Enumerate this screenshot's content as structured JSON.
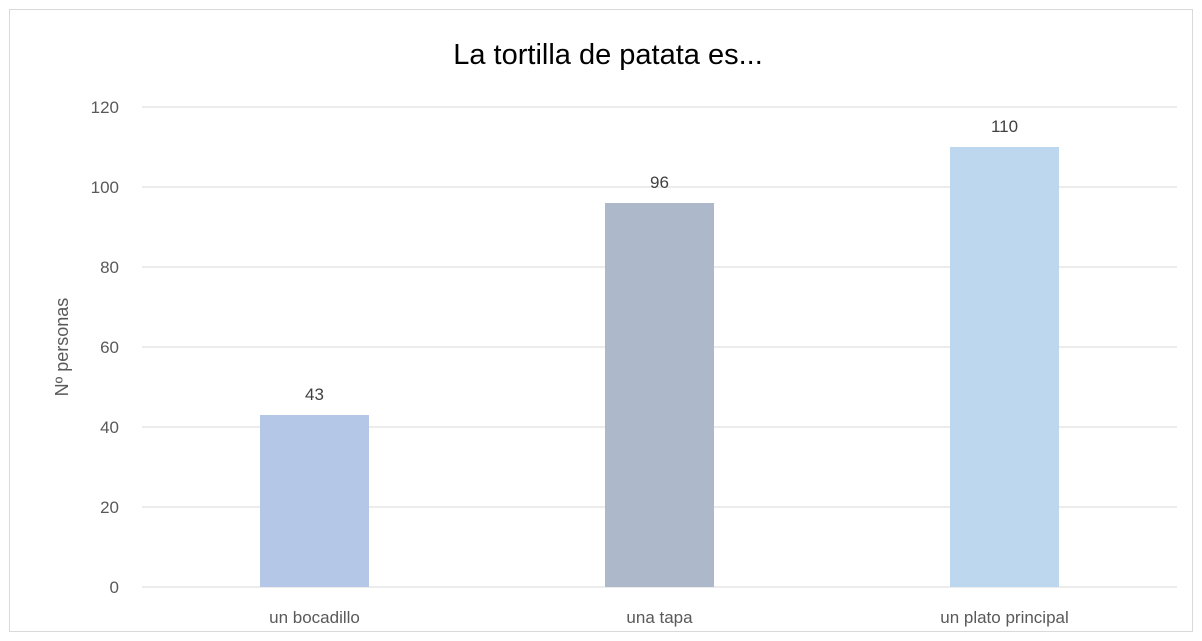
{
  "chart_data": {
    "type": "bar",
    "title": "La tortilla de patata es...",
    "xlabel": "",
    "ylabel": "Nº personas",
    "categories": [
      "un bocadillo",
      "una tapa",
      "un plato principal"
    ],
    "values": [
      43,
      96,
      110
    ],
    "data_labels": [
      "43",
      "96",
      "110"
    ],
    "bar_colors": [
      "#b4c7e7",
      "#adb9ca",
      "#bdd7ee"
    ],
    "ylim": [
      0,
      120
    ],
    "yticks": [
      0,
      20,
      40,
      60,
      80,
      100,
      120
    ],
    "ytick_labels": [
      "0",
      "20",
      "40",
      "60",
      "80",
      "100",
      "120"
    ],
    "grid": true,
    "legend": "none"
  }
}
